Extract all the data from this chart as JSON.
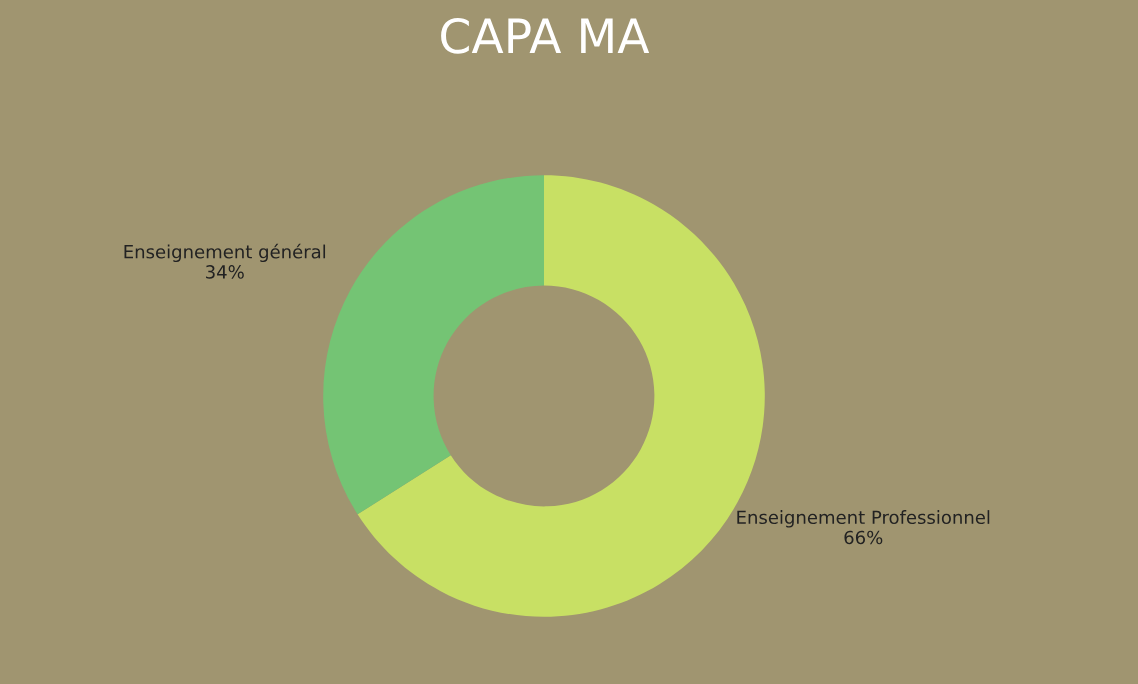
{
  "chart_data": {
    "type": "donut",
    "title": "CAPA MA",
    "categories": [
      "Enseignement Professionnel",
      "Enseignement général"
    ],
    "values": [
      66,
      34
    ],
    "colors": [
      "#c8e064",
      "#74c474"
    ],
    "value_labels": [
      "66%",
      "34%"
    ]
  }
}
